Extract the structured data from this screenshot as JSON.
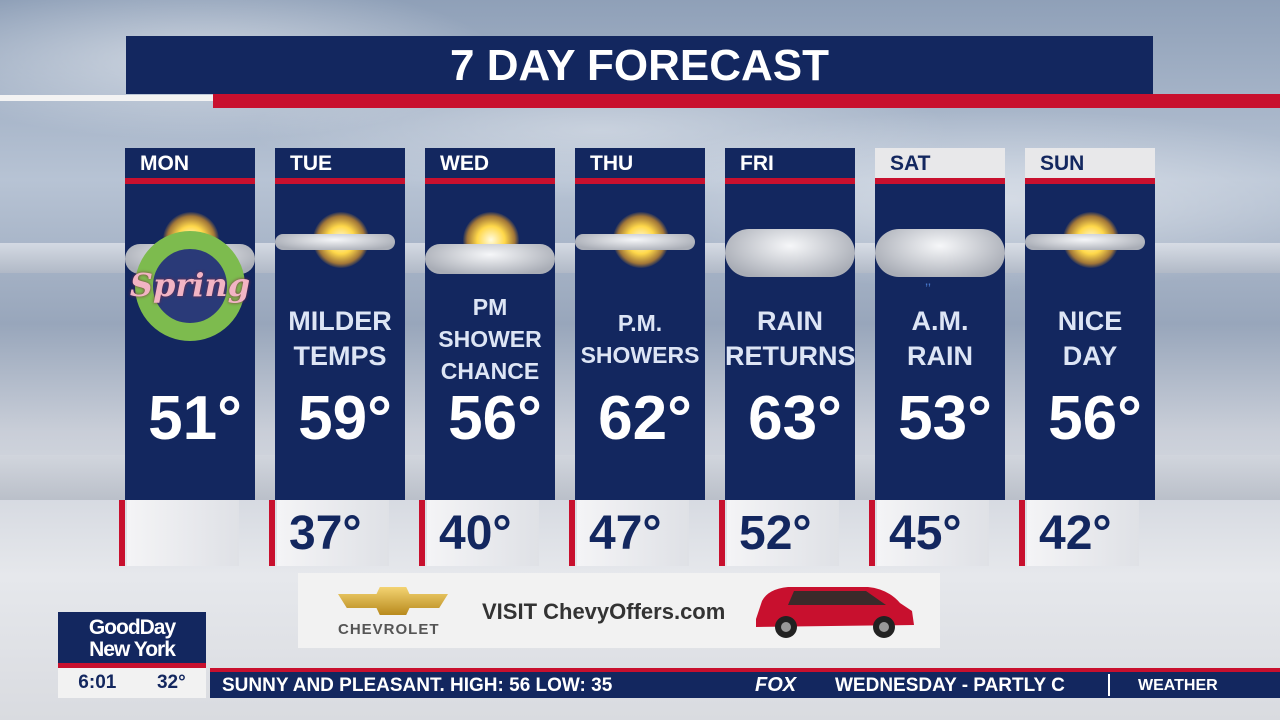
{
  "title": "7 DAY FORECAST",
  "days": [
    {
      "day": "MON",
      "desc": [
        "",
        ""
      ],
      "high": "51°",
      "low": "",
      "icon": "partly-sunny-spring-wreath-icon",
      "badge": "Spring"
    },
    {
      "day": "TUE",
      "desc": [
        "MILDER",
        "TEMPS"
      ],
      "high": "59°",
      "low": "37°",
      "icon": "mostly-sunny-icon"
    },
    {
      "day": "WED",
      "desc": [
        "PM",
        "SHOWER",
        "CHANCE"
      ],
      "high": "56°",
      "low": "40°",
      "icon": "partly-sunny-icon"
    },
    {
      "day": "THU",
      "desc": [
        "P.M.",
        "SHOWERS"
      ],
      "high": "62°",
      "low": "47°",
      "icon": "mostly-sunny-icon"
    },
    {
      "day": "FRI",
      "desc": [
        "RAIN",
        "RETURNS"
      ],
      "high": "63°",
      "low": "52°",
      "icon": "cloudy-icon"
    },
    {
      "day": "SAT",
      "desc": [
        "A.M.",
        "RAIN"
      ],
      "high": "53°",
      "low": "45°",
      "icon": "rain-cloud-icon"
    },
    {
      "day": "SUN",
      "desc": [
        "NICE",
        "DAY"
      ],
      "high": "56°",
      "low": "42°",
      "icon": "mostly-sunny-icon"
    }
  ],
  "ad": {
    "brand": "CHEVROLET",
    "text": "VISIT ChevyOffers.com"
  },
  "station": {
    "logo_line1": "GoodDay",
    "logo_line2": "New York",
    "time": "6:01",
    "temp": "32°"
  },
  "ticker": {
    "text1": "SUNNY AND PLEASANT. HIGH:  56 LOW:  35",
    "network": "FOX",
    "text2": "WEDNESDAY - PARTLY C",
    "section": "WEATHER"
  },
  "colors": {
    "navy": "#13275f",
    "red": "#c8102e"
  }
}
